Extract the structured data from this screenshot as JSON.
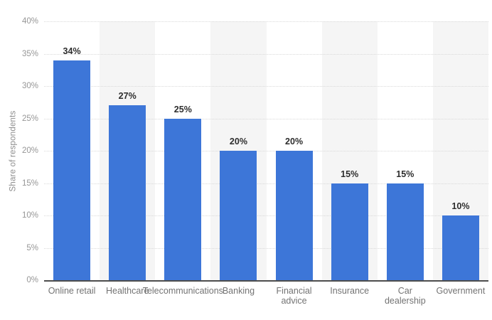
{
  "chart_data": {
    "type": "bar",
    "title": "",
    "xlabel": "",
    "ylabel": "Share of respondents",
    "categories": [
      "Online retail",
      "Healthcare",
      "Telecommunications",
      "Banking",
      "Financial advice",
      "Insurance",
      "Car dealership",
      "Government"
    ],
    "category_display": [
      "Online retail",
      "Healthcare",
      "Telecommunications",
      "Banking",
      "Financial\nadvice",
      "Insurance",
      "Car\ndealership",
      "Government"
    ],
    "values": [
      34,
      27,
      25,
      20,
      20,
      15,
      15,
      10
    ],
    "value_labels": [
      "34%",
      "27%",
      "25%",
      "20%",
      "20%",
      "15%",
      "15%",
      "10%"
    ],
    "ylim": [
      0,
      40
    ],
    "ytick_values": [
      0,
      5,
      10,
      15,
      20,
      25,
      30,
      35,
      40
    ],
    "ytick_labels": [
      "0%",
      "5%",
      "10%",
      "15%",
      "20%",
      "25%",
      "30%",
      "35%",
      "40%"
    ],
    "grid": "horizontal-dotted",
    "legend": "none",
    "background_bands": "alternating white/gray per category"
  },
  "colors": {
    "bar": "#3d76d8",
    "band_even": "#ffffff",
    "band_odd": "#f5f5f5",
    "gridline": "#d9d9d9",
    "axis_line": "#4d4d4d",
    "tick_text": "#969696",
    "category_text": "#737373",
    "value_text": "#2d2d2d",
    "y_title_text": "#8c8c8c",
    "page_background": "#ffffff"
  }
}
